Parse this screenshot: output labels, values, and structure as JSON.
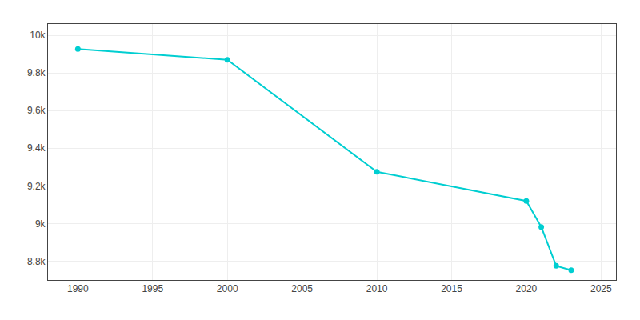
{
  "chart_data": {
    "type": "line",
    "x": [
      1990,
      2000,
      2010,
      2020,
      2021,
      2022,
      2023
    ],
    "values": [
      9927,
      9870,
      9275,
      9120,
      8982,
      8775,
      8752
    ],
    "color": "#00CED1",
    "marker": "circle",
    "xlim": [
      1988,
      2026
    ],
    "ylim": [
      8700,
      10060
    ],
    "xticks": [
      1990,
      1995,
      2000,
      2005,
      2010,
      2015,
      2020,
      2025
    ],
    "yticks": [
      {
        "value": 8800,
        "label": "8.8k"
      },
      {
        "value": 9000,
        "label": "9k"
      },
      {
        "value": 9200,
        "label": "9.2k"
      },
      {
        "value": 9400,
        "label": "9.4k"
      },
      {
        "value": 9600,
        "label": "9.6k"
      },
      {
        "value": 9800,
        "label": "9.8k"
      },
      {
        "value": 10000,
        "label": "10k"
      }
    ],
    "grid": true
  }
}
